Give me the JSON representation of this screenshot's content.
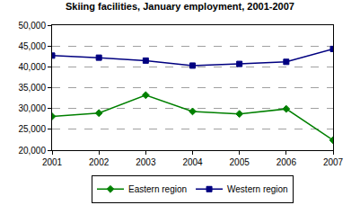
{
  "chart_data": {
    "type": "line",
    "title": "Skiing facilities, January employment, 2001-2007",
    "x": [
      2001,
      2002,
      2003,
      2004,
      2005,
      2006,
      2007
    ],
    "series": [
      {
        "name": "Eastern region",
        "color": "#008000",
        "marker": "diamond",
        "values": [
          28100,
          28900,
          33200,
          29300,
          28700,
          29900,
          22400
        ]
      },
      {
        "name": "Western region",
        "color": "#000080",
        "marker": "square",
        "values": [
          42700,
          42200,
          41500,
          40300,
          40700,
          41200,
          44300
        ]
      }
    ],
    "xlim": [
      2001,
      2007
    ],
    "xticks": [
      2001,
      2002,
      2003,
      2004,
      2005,
      2006,
      2007
    ],
    "ylim": [
      20000,
      50000
    ],
    "yticks": [
      {
        "value": 20000,
        "label": "20,000"
      },
      {
        "value": 25000,
        "label": "25,000"
      },
      {
        "value": 30000,
        "label": "30,000"
      },
      {
        "value": 35000,
        "label": "35,000"
      },
      {
        "value": 40000,
        "label": "40,000"
      },
      {
        "value": 45000,
        "label": "45,000"
      },
      {
        "value": 50000,
        "label": "50,000"
      }
    ],
    "grid": true,
    "legend": "bottom"
  }
}
